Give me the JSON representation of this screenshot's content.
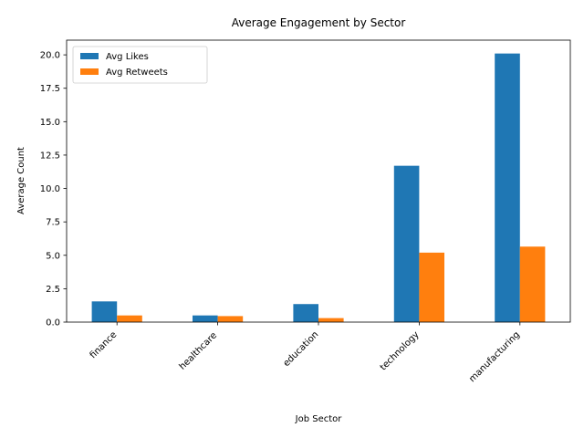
{
  "chart_data": {
    "type": "bar",
    "title": "Average Engagement by Sector",
    "xlabel": "Job Sector",
    "ylabel": "Average Count",
    "categories": [
      "finance",
      "healthcare",
      "education",
      "technology",
      "manufacturing"
    ],
    "series": [
      {
        "name": "Avg Likes",
        "color": "#1f77b4",
        "values": [
          1.55,
          0.5,
          1.35,
          11.7,
          20.1
        ]
      },
      {
        "name": "Avg Retweets",
        "color": "#ff7f0e",
        "values": [
          0.5,
          0.45,
          0.3,
          5.2,
          5.65
        ]
      }
    ],
    "ylim": [
      0,
      21.1
    ],
    "yticks": [
      "0.0",
      "2.5",
      "5.0",
      "7.5",
      "10.0",
      "12.5",
      "15.0",
      "17.5",
      "20.0"
    ],
    "grid": false,
    "legend_position": "top-left",
    "xtick_rotation": 45
  }
}
